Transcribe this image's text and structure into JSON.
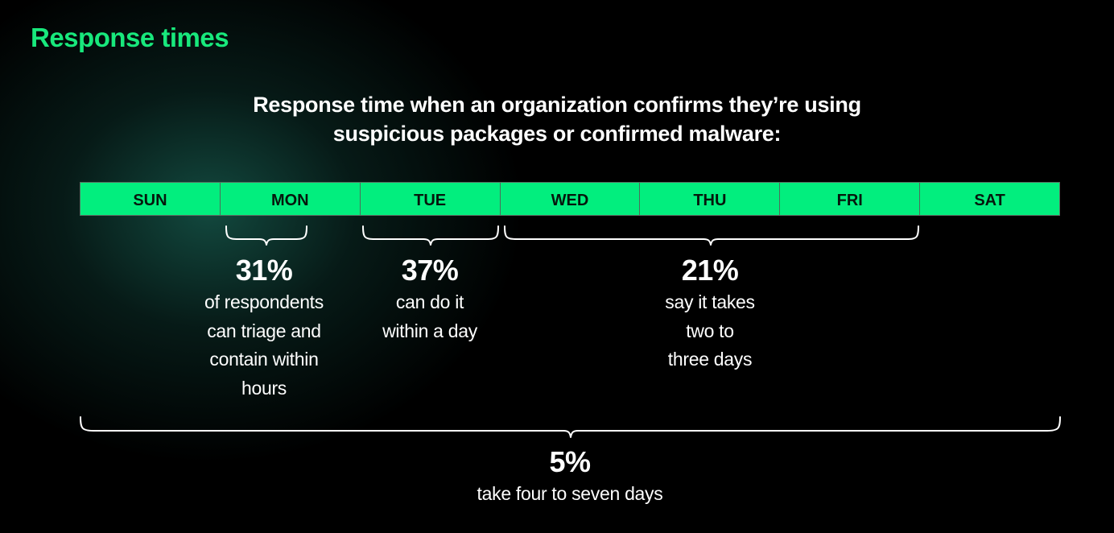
{
  "header": {
    "title": "Response times"
  },
  "subtitle": {
    "line1": "Response time when an organization confirms they’re using",
    "line2": "suspicious packages or confirmed malware:"
  },
  "week": {
    "days": [
      "SUN",
      "MON",
      "TUE",
      "WED",
      "THU",
      "FRI",
      "SAT"
    ]
  },
  "stats": [
    {
      "value": "31%",
      "description": "of respondents\ncan triage and\ncontain within\nhours",
      "span": "MON"
    },
    {
      "value": "37%",
      "description": "can do it\nwithin a day",
      "span": "TUE"
    },
    {
      "value": "21%",
      "description": "say it takes\ntwo to\nthree days",
      "span": "WED–FRI"
    },
    {
      "value": "5%",
      "description": "take four to seven days",
      "span": "SUN–SAT"
    }
  ],
  "colors": {
    "accent": "#18e87c",
    "bar": "#02ee7e",
    "background": "#000000",
    "text": "#ffffff"
  }
}
